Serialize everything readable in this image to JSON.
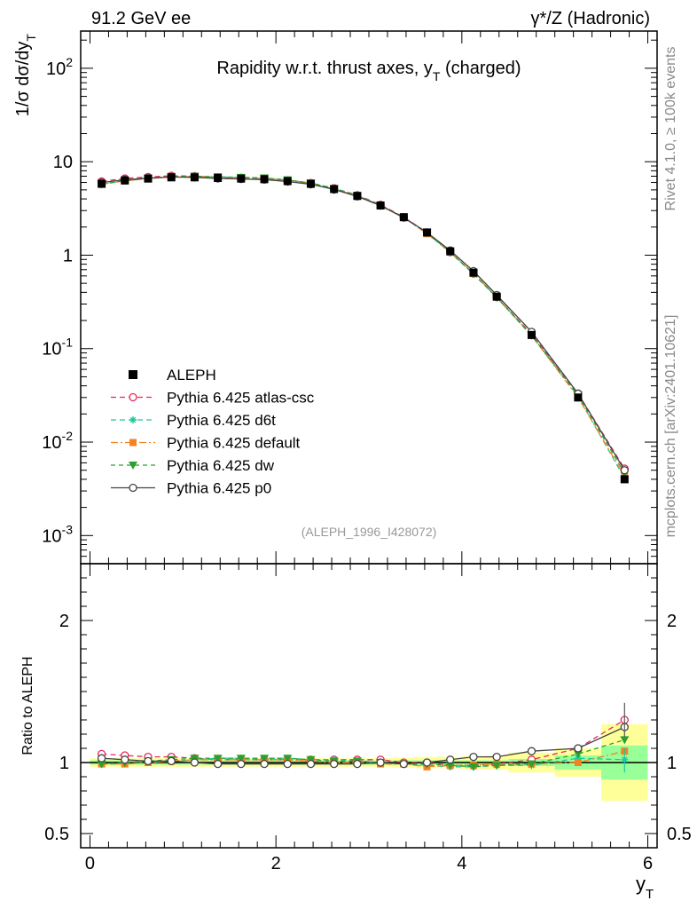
{
  "header": {
    "left": "91.2 GeV ee",
    "right": "γ*/Z (Hadronic)"
  },
  "side_labels": {
    "rivet": "Rivet 4.1.0, ≥ 100k events",
    "mcplots": "mcplots.cern.ch [arXiv:2401.10621]"
  },
  "chart_data": {
    "type": "line",
    "title": "Rapidity w.r.t. thrust axes, y_T (charged)",
    "title_main": "Rapidity w.r.t. thrust axes, y",
    "title_sub": "T",
    "title_tail": " (charged)",
    "analysis_label": "(ALEPH_1996_I428072)",
    "ylabel_main": "1/σ  dσ/dy",
    "ylabel_sub": "T",
    "xlabel_main": "y",
    "xlabel_sub": "T",
    "ratio_ylabel": "Ratio to ALEPH",
    "xlim": [
      -0.1,
      6.1
    ],
    "ylim_main": [
      0.0005,
      250
    ],
    "ylim_ratio": [
      0.4,
      2.4
    ],
    "main_y_ticks": [
      {
        "value": 0.001,
        "base": "10",
        "exp": "-3"
      },
      {
        "value": 0.01,
        "base": "10",
        "exp": "-2"
      },
      {
        "value": 0.1,
        "base": "10",
        "exp": "-1"
      },
      {
        "value": 1,
        "base": "1",
        "exp": ""
      },
      {
        "value": 10,
        "base": "10",
        "exp": ""
      },
      {
        "value": 100,
        "base": "10",
        "exp": "2"
      }
    ],
    "ratio_y_ticks": [
      {
        "value": 0.5,
        "label": "0.5"
      },
      {
        "value": 1,
        "label": "1"
      },
      {
        "value": 2,
        "label": "2"
      }
    ],
    "x_ticks": [
      {
        "value": 0,
        "label": "0"
      },
      {
        "value": 2,
        "label": "2"
      },
      {
        "value": 4,
        "label": "4"
      },
      {
        "value": 6,
        "label": "6"
      }
    ],
    "x": [
      0.125,
      0.375,
      0.625,
      0.875,
      1.125,
      1.375,
      1.625,
      1.875,
      2.125,
      2.375,
      2.625,
      2.875,
      3.125,
      3.375,
      3.625,
      3.875,
      4.125,
      4.375,
      4.75,
      5.25,
      5.75
    ],
    "bin_edges": [
      0,
      0.25,
      0.5,
      0.75,
      1.0,
      1.25,
      1.5,
      1.75,
      2.0,
      2.25,
      2.5,
      2.75,
      3.0,
      3.25,
      3.5,
      3.75,
      4.0,
      4.25,
      4.5,
      5.0,
      5.5,
      6.0
    ],
    "data": {
      "name": "ALEPH",
      "values": [
        5.8,
        6.3,
        6.6,
        6.8,
        6.8,
        6.7,
        6.6,
        6.5,
        6.2,
        5.8,
        5.1,
        4.3,
        3.4,
        2.55,
        1.75,
        1.1,
        0.65,
        0.36,
        0.14,
        0.03,
        0.004
      ],
      "band_stat": [
        0.015,
        0.015,
        0.015,
        0.015,
        0.015,
        0.015,
        0.015,
        0.015,
        0.015,
        0.015,
        0.015,
        0.015,
        0.015,
        0.015,
        0.015,
        0.015,
        0.015,
        0.015,
        0.025,
        0.05,
        0.12
      ],
      "band_total": [
        0.03,
        0.03,
        0.03,
        0.03,
        0.03,
        0.03,
        0.03,
        0.03,
        0.03,
        0.03,
        0.03,
        0.03,
        0.03,
        0.035,
        0.04,
        0.04,
        0.045,
        0.05,
        0.07,
        0.1,
        0.27
      ]
    },
    "series": [
      {
        "name": "Pythia 6.425 atlas-csc",
        "color": "#e8285a",
        "dash": "6,4",
        "marker": "open-circle",
        "ratio": [
          1.06,
          1.05,
          1.04,
          1.04,
          1.03,
          1.02,
          1.02,
          1.02,
          1.02,
          1.02,
          1.02,
          1.02,
          1.02,
          1.0,
          1.0,
          0.98,
          0.98,
          0.99,
          1.02,
          1.1,
          1.3
        ]
      },
      {
        "name": "Pythia 6.425 d6t",
        "color": "#1ec8a0",
        "dash": "6,4",
        "marker": "star",
        "ratio": [
          0.99,
          0.99,
          1.0,
          1.01,
          1.02,
          1.03,
          1.03,
          1.03,
          1.03,
          1.02,
          1.02,
          1.01,
          1.0,
          0.99,
          0.98,
          0.97,
          0.97,
          0.98,
          0.98,
          1.03,
          1.02
        ]
      },
      {
        "name": "Pythia 6.425 default",
        "color": "#f58220",
        "dash": "8,3,2,3",
        "marker": "square",
        "ratio": [
          0.99,
          0.99,
          1.0,
          1.01,
          1.02,
          1.02,
          1.02,
          1.02,
          1.02,
          1.01,
          1.0,
          1.0,
          0.99,
          0.99,
          0.97,
          0.98,
          0.98,
          0.99,
          0.99,
          1.0,
          1.08
        ]
      },
      {
        "name": "Pythia 6.425 dw",
        "color": "#2ca02c",
        "dash": "5,4",
        "marker": "triangle-down",
        "ratio": [
          0.99,
          1.0,
          1.01,
          1.02,
          1.03,
          1.03,
          1.03,
          1.03,
          1.03,
          1.02,
          1.01,
          1.01,
          1.0,
          0.99,
          0.99,
          0.98,
          0.97,
          0.98,
          0.99,
          1.06,
          1.16
        ]
      },
      {
        "name": "Pythia 6.425 p0",
        "color": "#444444",
        "dash": "",
        "marker": "open-circle",
        "ratio": [
          1.03,
          1.02,
          1.01,
          1.01,
          1.0,
          0.99,
          0.99,
          0.99,
          0.99,
          0.99,
          0.99,
          0.99,
          1.0,
          0.99,
          1.0,
          1.02,
          1.04,
          1.04,
          1.08,
          1.1,
          1.25
        ]
      }
    ]
  },
  "colors": {
    "band_total": "#ffff99",
    "band_stat": "#99ff99",
    "data_marker": "#000000"
  }
}
